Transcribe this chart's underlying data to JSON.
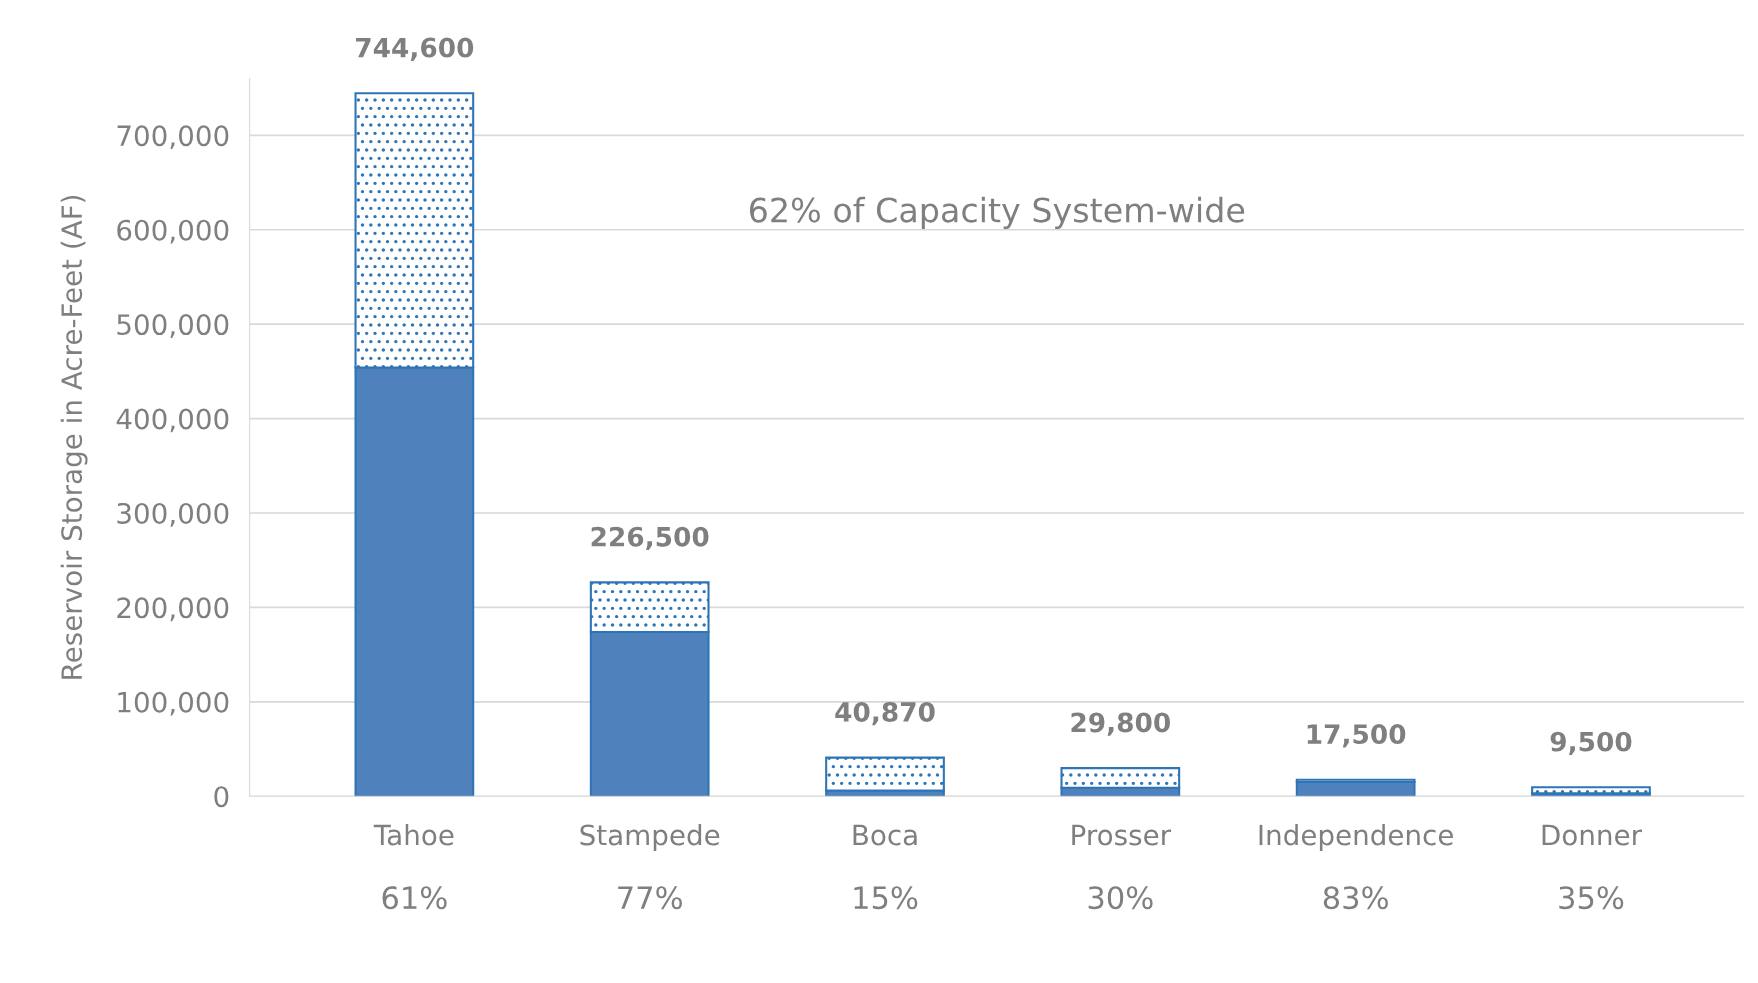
{
  "chart_data": {
    "type": "bar",
    "stacked": true,
    "categories": [
      "Tahoe",
      "Stampede",
      "Boca",
      "Prosser",
      "Independence",
      "Donner"
    ],
    "series": [
      {
        "color": "#4f81bd",
        "values": [
          454000,
          174000,
          6000,
          9000,
          15000,
          3000
        ]
      },
      {
        "color": "#2e75b6",
        "values": [
          290600,
          52500,
          34870,
          20800,
          2500,
          6500
        ]
      }
    ],
    "totals": [
      "744,600",
      "226,500",
      "40,870",
      "29,800",
      "17,500",
      "9,500"
    ],
    "ylabel": "Reservoir Storage in Acre-Feet (AF)",
    "ylim": [
      0,
      760000
    ],
    "yticks": [
      {
        "value": 0,
        "label": "0"
      },
      {
        "value": 100000,
        "label": "100,000"
      },
      {
        "value": 200000,
        "label": "200,000"
      },
      {
        "value": 300000,
        "label": "300,000"
      },
      {
        "value": 400000,
        "label": "400,000"
      },
      {
        "value": 500000,
        "label": "500,000"
      },
      {
        "value": 600000,
        "label": "600,000"
      },
      {
        "value": 700000,
        "label": "700,000"
      }
    ],
    "grid": "y",
    "annotations": [
      "62% of Capacity System-wide",
      "61%",
      "77%",
      "15%",
      "30%",
      "83%",
      "35%"
    ]
  }
}
